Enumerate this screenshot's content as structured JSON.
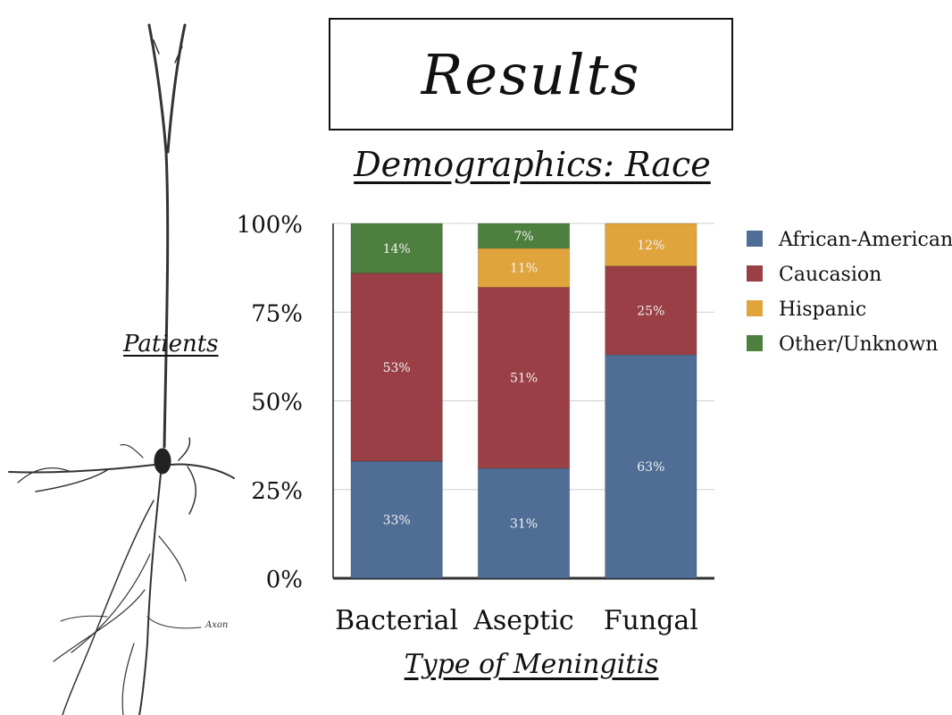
{
  "slide": {
    "title": "Results",
    "subtitle": "Demographics: Race",
    "neuron_label": "Axon"
  },
  "chart_data": {
    "type": "bar",
    "stacked": true,
    "percent_stacked": true,
    "title": "Demographics: Race",
    "xlabel": "Type of Meningitis",
    "ylabel": "Patients",
    "categories": [
      "Bacterial",
      "Aseptic",
      "Fungal"
    ],
    "ylim": [
      0,
      100
    ],
    "yticks": [
      "0%",
      "25%",
      "50%",
      "75%",
      "100%"
    ],
    "grid": true,
    "legend_position": "right",
    "series": [
      {
        "name": "African-American",
        "color": "#4f6d95",
        "values": [
          33,
          31,
          63
        ],
        "labels": [
          "33%",
          "31%",
          "63%"
        ]
      },
      {
        "name": "Caucasion",
        "color": "#9a3f45",
        "values": [
          53,
          51,
          25
        ],
        "labels": [
          "53%",
          "51%",
          "25%"
        ]
      },
      {
        "name": "Hispanic",
        "color": "#e0a43c",
        "values": [
          0,
          11,
          12
        ],
        "labels": [
          "",
          "11%",
          "12%"
        ]
      },
      {
        "name": "Other/Unknown",
        "color": "#4d7f3f",
        "values": [
          14,
          7,
          0
        ],
        "labels": [
          "14%",
          "7%",
          ""
        ]
      }
    ]
  }
}
